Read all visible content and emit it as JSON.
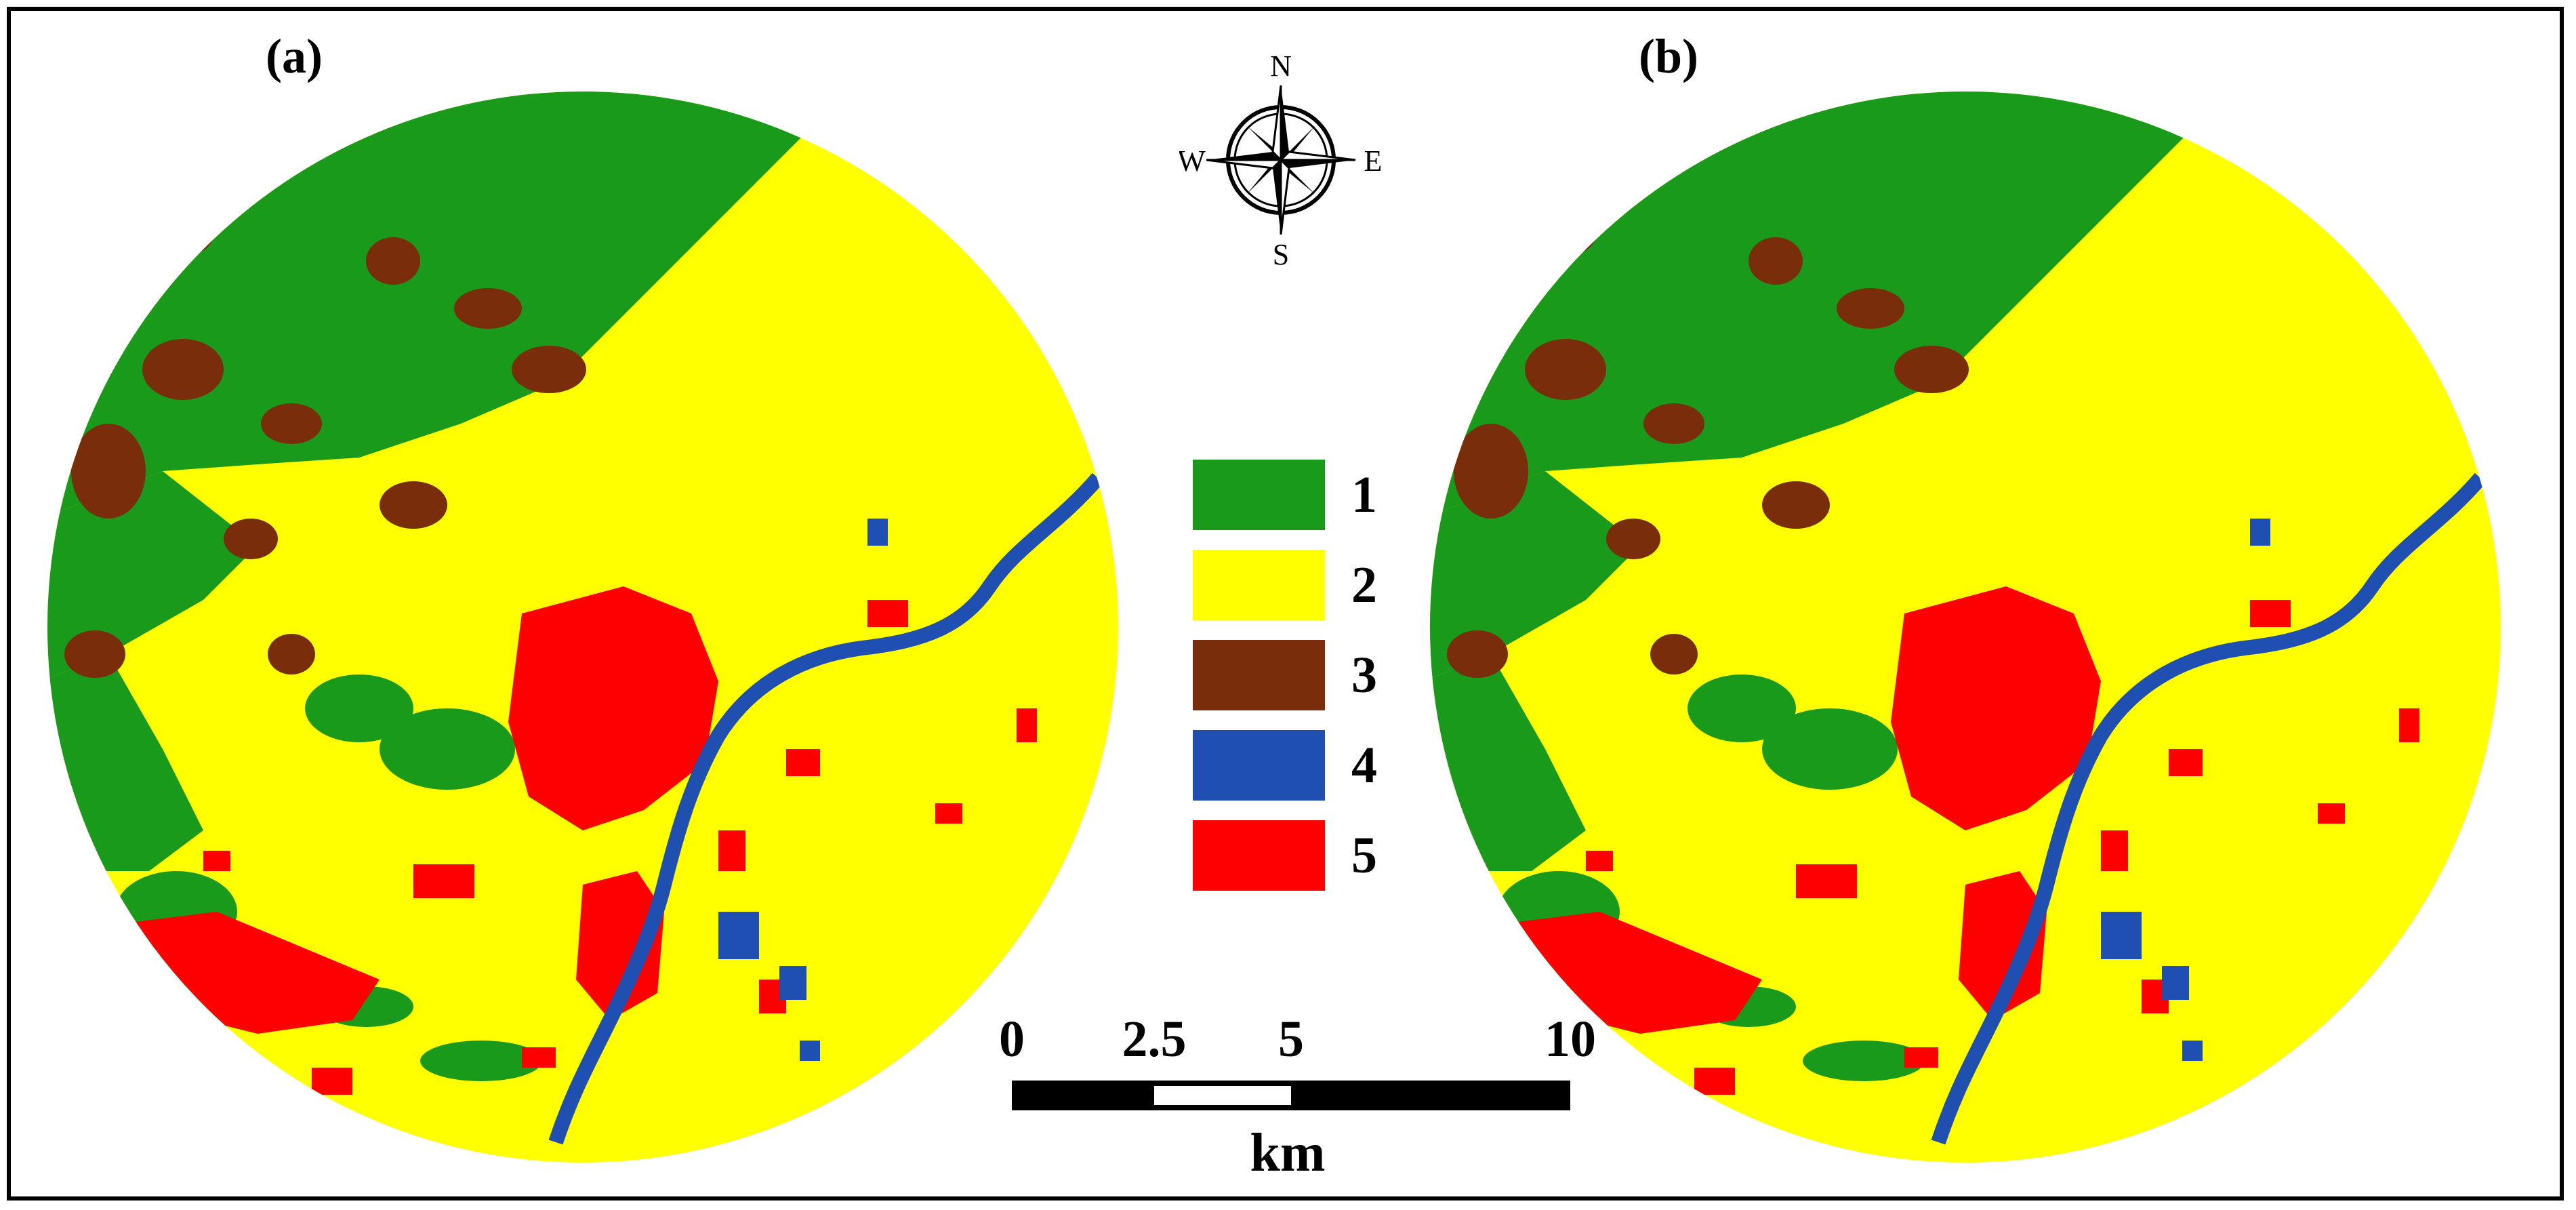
{
  "panels": [
    {
      "label": "(a)"
    },
    {
      "label": "(b)"
    }
  ],
  "compass": {
    "n": "N",
    "s": "S",
    "e": "E",
    "w": "W"
  },
  "legend": [
    {
      "label": "1",
      "color": "#1a9a1a"
    },
    {
      "label": "2",
      "color": "#ffff00"
    },
    {
      "label": "3",
      "color": "#7a2d0a"
    },
    {
      "label": "4",
      "color": "#1f4fb0"
    },
    {
      "label": "5",
      "color": "#ff0000"
    }
  ],
  "scale": {
    "ticks": [
      "0",
      "2.5",
      "5",
      "10"
    ],
    "units": "km"
  },
  "colors": {
    "forest": "#1a9a1a",
    "agriculture": "#ffff00",
    "bare": "#7a2d0a",
    "water": "#1f4fb0",
    "urban": "#ff0000"
  }
}
